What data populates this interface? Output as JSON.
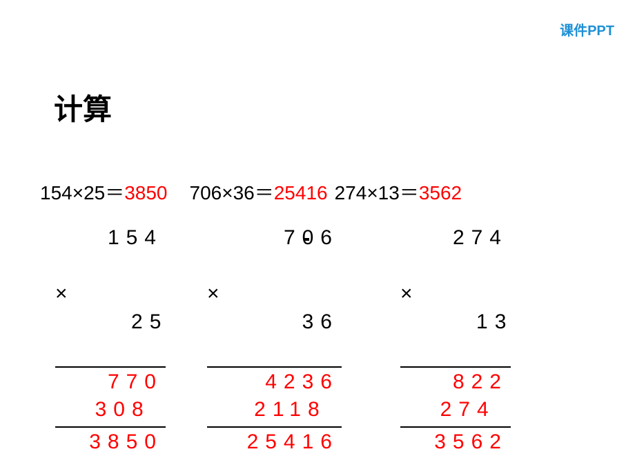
{
  "watermark": {
    "text": "课件PPT",
    "color": "#1e90d4"
  },
  "title": {
    "text": "计算",
    "color": "#000000"
  },
  "equations": [
    {
      "lhs": "154×25＝",
      "result": "3850",
      "lhs_color": "#000000",
      "result_color": "#ff0000"
    },
    {
      "lhs": "706×36＝",
      "result": "25416",
      "lhs_color": "#000000",
      "result_color": "#ff0000"
    },
    {
      "lhs": "274×13＝",
      "result": "3562",
      "lhs_color": "#000000",
      "result_color": "#ff0000"
    }
  ],
  "calculations": [
    {
      "top_number": "154",
      "mult_symbol": "×",
      "bottom_number": "25",
      "partial1": "770",
      "partial2": "308 ",
      "final": "3850",
      "black_color": "#000000",
      "red_color": "#ff0000"
    },
    {
      "top_number": "706",
      "mult_symbol": "×",
      "bottom_number": "36",
      "partial1": "4236",
      "partial2": "2118 ",
      "final": "25416",
      "black_color": "#000000",
      "red_color": "#ff0000"
    },
    {
      "top_number": "274",
      "mult_symbol": "×",
      "bottom_number": "13",
      "partial1": "822",
      "partial2": "274 ",
      "final": "3562",
      "black_color": "#000000",
      "red_color": "#ff0000"
    }
  ],
  "colors": {
    "background": "#ffffff",
    "text_black": "#000000",
    "text_red": "#ff0000",
    "watermark_blue": "#1e90d4"
  }
}
